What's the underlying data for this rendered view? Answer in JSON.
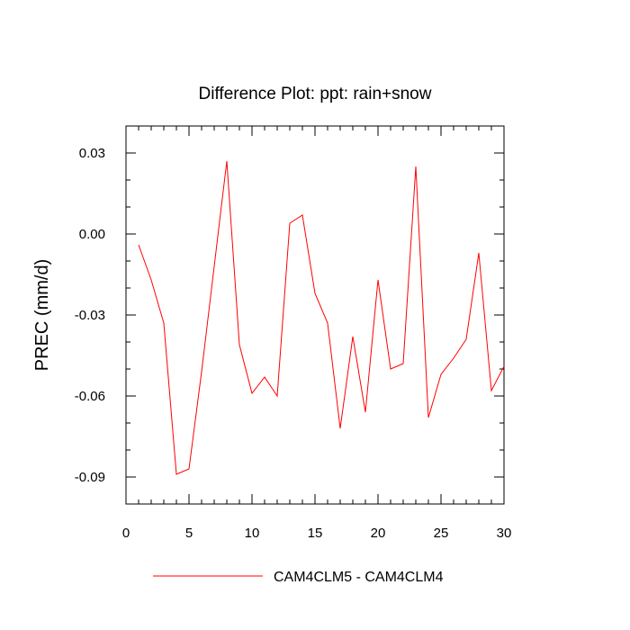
{
  "chart_data": {
    "type": "line",
    "title": "Difference Plot: ppt: rain+snow",
    "xlabel": "",
    "ylabel": "PREC  (mm/d)",
    "xlim": [
      0,
      30
    ],
    "ylim": [
      -0.1,
      0.04
    ],
    "x_ticks": [
      0,
      5,
      10,
      15,
      20,
      25,
      30
    ],
    "x_tick_labels": [
      "0",
      "5",
      "10",
      "15",
      "20",
      "25",
      "30"
    ],
    "y_ticks": [
      -0.09,
      -0.06,
      -0.03,
      0.0,
      0.03
    ],
    "y_tick_labels": [
      "-0.09",
      "-0.06",
      "-0.03",
      "0.00",
      "0.03"
    ],
    "grid": false,
    "legend_position": "bottom",
    "series": [
      {
        "name": "CAM4CLM5 - CAM4CLM4",
        "color": "#ff0000",
        "x": [
          1,
          2,
          3,
          4,
          5,
          6,
          7,
          8,
          9,
          10,
          11,
          12,
          13,
          14,
          15,
          16,
          17,
          18,
          19,
          20,
          21,
          22,
          23,
          24,
          25,
          26,
          27,
          28,
          29,
          30
        ],
        "values": [
          -0.004,
          -0.017,
          -0.033,
          -0.089,
          -0.087,
          -0.051,
          -0.012,
          0.027,
          -0.041,
          -0.059,
          -0.053,
          -0.06,
          0.004,
          0.007,
          -0.022,
          -0.033,
          -0.072,
          -0.038,
          -0.066,
          -0.017,
          -0.05,
          -0.048,
          0.025,
          -0.068,
          -0.052,
          -0.046,
          -0.039,
          -0.007,
          -0.058,
          -0.049
        ]
      }
    ]
  }
}
